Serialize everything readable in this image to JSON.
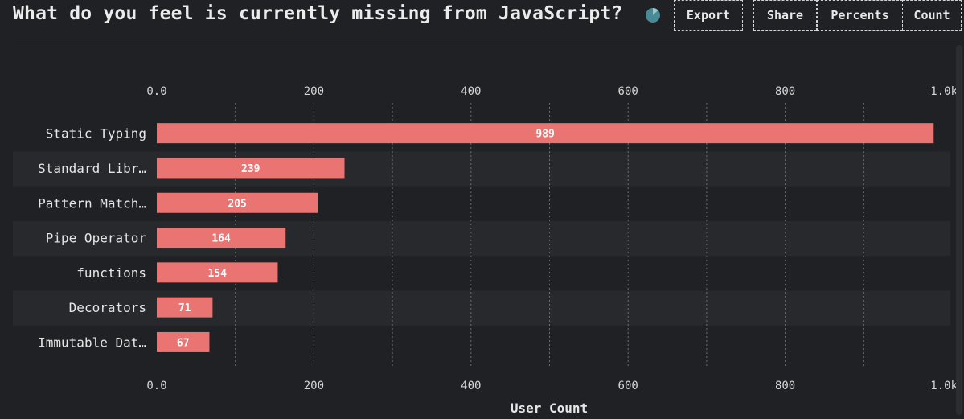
{
  "header": {
    "title": "What do you feel is currently missing from JavaScript?",
    "buttons": {
      "export": "Export",
      "share": "Share",
      "percents": "Percents",
      "count": "Count"
    }
  },
  "colors": {
    "bar": "#e97472",
    "background": "#202125",
    "band": "#28292d",
    "icon": "#4a8a96"
  },
  "chart_data": {
    "type": "bar",
    "orientation": "horizontal",
    "categories": [
      "Static Typing",
      "Standard Libr…",
      "Pattern Match…",
      "Pipe Operator",
      "functions",
      "Decorators",
      "Immutable Dat…"
    ],
    "values": [
      989,
      239,
      205,
      164,
      154,
      71,
      67
    ],
    "xlabel": "User Count",
    "xlim": [
      0,
      1000
    ],
    "ticks": [
      "0.0",
      "200",
      "400",
      "600",
      "800",
      "1.0k"
    ],
    "tick_values": [
      0,
      200,
      400,
      600,
      800,
      1000
    ],
    "grid": true
  }
}
